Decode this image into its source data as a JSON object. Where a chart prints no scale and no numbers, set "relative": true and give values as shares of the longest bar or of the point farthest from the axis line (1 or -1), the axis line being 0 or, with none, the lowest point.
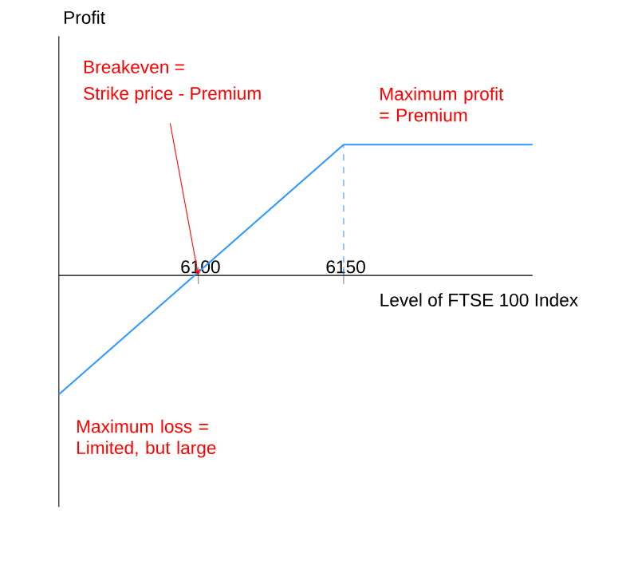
{
  "chart_data": {
    "type": "line",
    "xlabel": "Level of FTSE 100 Index",
    "relative": true,
    "x": [
      6052,
      6150,
      6215
    ],
    "xlim": [
      6052,
      6215
    ],
    "xticks": [
      6100,
      6150
    ],
    "series": [
      {
        "color": "#3399ff",
        "values": [
          -0.91,
          1,
          1
        ]
      }
    ],
    "ref_lines": [
      {
        "axis": "x",
        "value": 6150,
        "color": "#3399ff",
        "line_style": "dashed"
      }
    ],
    "annotations": [
      {
        "text": "Strike price - Premium",
        "x": 6100,
        "y": 0
      },
      "Breakeven =",
      "Maximum profit = Premium",
      "Maximum loss = Limited, but large",
      "Profit"
    ],
    "grid": false,
    "marker": "none",
    "line_style": "solid"
  }
}
